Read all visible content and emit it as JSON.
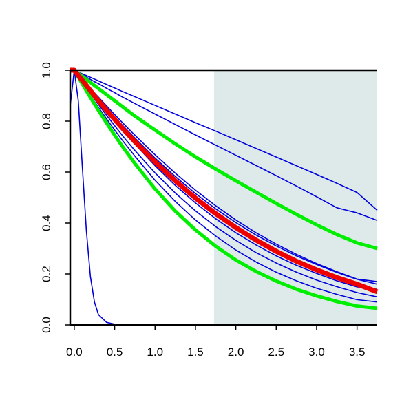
{
  "chart_data": {
    "type": "line",
    "title": "",
    "xlabel": "",
    "ylabel": "",
    "xlim": [
      -0.05,
      3.75
    ],
    "ylim": [
      0,
      1
    ],
    "grid": false,
    "legend": "none",
    "shaded_region": {
      "x_from": 1.73,
      "x_to": 3.75,
      "color": "#deeaea"
    },
    "x_ticks": [
      {
        "value": 0.0,
        "label": "0.0"
      },
      {
        "value": 0.5,
        "label": "0.5"
      },
      {
        "value": 1.0,
        "label": "1.0"
      },
      {
        "value": 1.5,
        "label": "1.5"
      },
      {
        "value": 2.0,
        "label": "2.0"
      },
      {
        "value": 2.5,
        "label": "2.5"
      },
      {
        "value": 3.0,
        "label": "3.0"
      },
      {
        "value": 3.5,
        "label": "3.5"
      }
    ],
    "y_ticks": [
      {
        "value": 0.0,
        "label": "0.0"
      },
      {
        "value": 0.2,
        "label": "0.2"
      },
      {
        "value": 0.4,
        "label": "0.4"
      },
      {
        "value": 0.6,
        "label": "0.6"
      },
      {
        "value": 0.8,
        "label": "0.8"
      },
      {
        "value": 1.0,
        "label": "1.0"
      }
    ],
    "x": [
      -0.05,
      0,
      0.05,
      0.1,
      0.15,
      0.2,
      0.25,
      0.3,
      0.4,
      0.5,
      0.6,
      0.75,
      1,
      1.25,
      1.5,
      1.75,
      2,
      2.25,
      2.5,
      2.75,
      3,
      3.25,
      3.5,
      3.75
    ],
    "series": [
      {
        "color": "#0000dd",
        "width": 1.6,
        "values": [
          0.86,
          1.0,
          0.88,
          0.62,
          0.37,
          0.19,
          0.09,
          0.04,
          0.01,
          0.003,
          0.0005,
          0,
          0,
          0,
          0,
          0,
          0,
          0,
          0,
          0,
          0,
          0,
          0,
          0
        ]
      },
      {
        "color": "#0000dd",
        "width": 1.6,
        "values": [
          1.0,
          1.0,
          0.993,
          0.986,
          0.979,
          0.972,
          0.965,
          0.958,
          0.944,
          0.93,
          0.916,
          0.896,
          0.862,
          0.828,
          0.794,
          0.761,
          0.727,
          0.693,
          0.659,
          0.625,
          0.591,
          0.556,
          0.52,
          0.45
        ]
      },
      {
        "color": "#0000dd",
        "width": 1.6,
        "values": [
          1.0,
          1.0,
          0.991,
          0.982,
          0.973,
          0.964,
          0.955,
          0.947,
          0.929,
          0.912,
          0.894,
          0.869,
          0.828,
          0.787,
          0.746,
          0.706,
          0.666,
          0.626,
          0.586,
          0.545,
          0.503,
          0.46,
          0.44,
          0.41
        ]
      },
      {
        "color": "#0000dd",
        "width": 1.6,
        "values": [
          1.0,
          1.0,
          0.982,
          0.964,
          0.946,
          0.929,
          0.911,
          0.894,
          0.86,
          0.826,
          0.793,
          0.745,
          0.668,
          0.596,
          0.529,
          0.468,
          0.412,
          0.362,
          0.317,
          0.277,
          0.241,
          0.209,
          0.18,
          0.17
        ]
      },
      {
        "color": "#0000dd",
        "width": 1.6,
        "values": [
          1.0,
          1.0,
          0.981,
          0.962,
          0.943,
          0.924,
          0.906,
          0.888,
          0.852,
          0.817,
          0.783,
          0.734,
          0.655,
          0.583,
          0.516,
          0.456,
          0.402,
          0.353,
          0.31,
          0.271,
          0.237,
          0.206,
          0.179,
          0.16
        ]
      },
      {
        "color": "#0000dd",
        "width": 1.6,
        "values": [
          1.0,
          1.0,
          0.979,
          0.958,
          0.937,
          0.917,
          0.897,
          0.877,
          0.838,
          0.8,
          0.763,
          0.71,
          0.625,
          0.548,
          0.479,
          0.417,
          0.362,
          0.314,
          0.271,
          0.234,
          0.202,
          0.173,
          0.149,
          0.14
        ]
      },
      {
        "color": "#0000dd",
        "width": 1.6,
        "values": [
          1.0,
          1.0,
          0.977,
          0.954,
          0.931,
          0.909,
          0.887,
          0.865,
          0.823,
          0.782,
          0.742,
          0.685,
          0.597,
          0.518,
          0.448,
          0.386,
          0.332,
          0.284,
          0.243,
          0.207,
          0.176,
          0.15,
          0.127,
          0.11
        ]
      },
      {
        "color": "#0000dd",
        "width": 1.6,
        "values": [
          1.0,
          1.0,
          0.975,
          0.95,
          0.925,
          0.901,
          0.877,
          0.854,
          0.809,
          0.765,
          0.723,
          0.663,
          0.568,
          0.485,
          0.412,
          0.349,
          0.294,
          0.247,
          0.207,
          0.173,
          0.144,
          0.12,
          0.099,
          0.09
        ]
      },
      {
        "color": "#00ee00",
        "width": 5,
        "values": [
          1.0,
          1.0,
          0.988,
          0.976,
          0.964,
          0.952,
          0.94,
          0.928,
          0.904,
          0.88,
          0.856,
          0.82,
          0.765,
          0.711,
          0.66,
          0.612,
          0.566,
          0.521,
          0.477,
          0.434,
          0.393,
          0.355,
          0.322,
          0.3
        ]
      },
      {
        "color": "#00ee00",
        "width": 5,
        "values": [
          1.0,
          1.0,
          0.973,
          0.946,
          0.919,
          0.893,
          0.867,
          0.842,
          0.793,
          0.745,
          0.699,
          0.634,
          0.534,
          0.447,
          0.373,
          0.309,
          0.255,
          0.21,
          0.172,
          0.14,
          0.114,
          0.092,
          0.074,
          0.065
        ]
      },
      {
        "color": "#ee0000",
        "width": 7,
        "values": [
          1.0,
          1.0,
          0.98,
          0.96,
          0.94,
          0.92,
          0.9,
          0.88,
          0.843,
          0.807,
          0.771,
          0.72,
          0.64,
          0.566,
          0.498,
          0.437,
          0.382,
          0.333,
          0.289,
          0.25,
          0.216,
          0.186,
          0.16,
          0.13
        ]
      }
    ]
  }
}
